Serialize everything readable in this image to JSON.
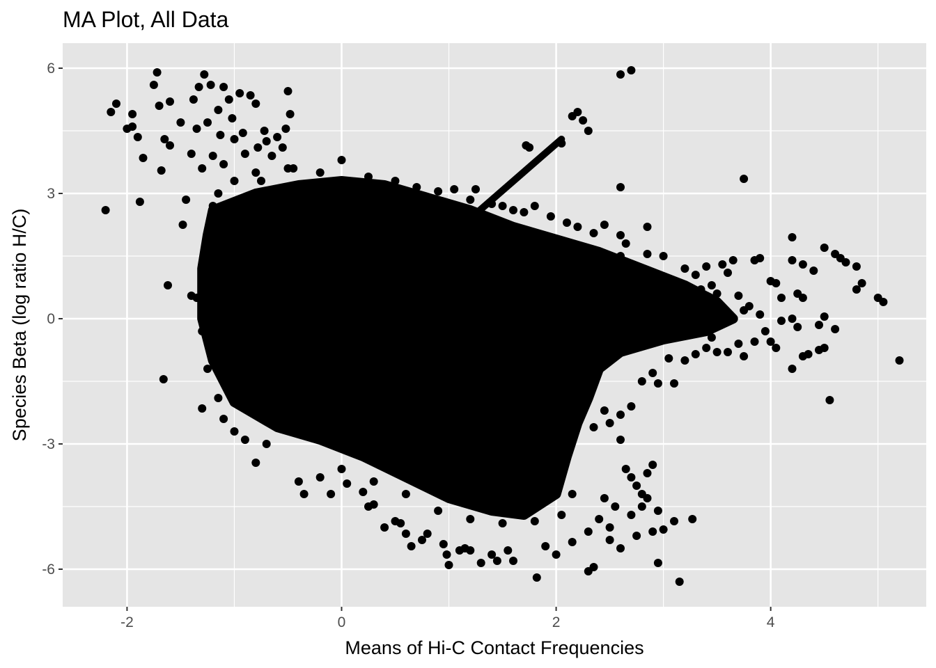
{
  "chart_data": {
    "type": "scatter",
    "title": "MA Plot, All Data",
    "xlabel": "Means of Hi-C Contact Frequencies",
    "ylabel": "Species Beta (log ratio H/C)",
    "xlim": [
      -2.6,
      5.45
    ],
    "ylim": [
      -6.9,
      6.6
    ],
    "x_ticks": [
      {
        "value": -2,
        "label": "-2"
      },
      {
        "value": 0,
        "label": "0"
      },
      {
        "value": 2,
        "label": "2"
      },
      {
        "value": 4,
        "label": "4"
      }
    ],
    "y_ticks": [
      {
        "value": -6,
        "label": "-6"
      },
      {
        "value": -3,
        "label": "-3"
      },
      {
        "value": 0,
        "label": "0"
      },
      {
        "value": 3,
        "label": "3"
      },
      {
        "value": 6,
        "label": "6"
      }
    ],
    "x_minor": [
      -1,
      1,
      3,
      5
    ],
    "y_minor": [
      -4.5,
      -1.5,
      1.5,
      4.5
    ],
    "grid": true,
    "colors": {
      "panel": "#e5e5e5",
      "grid": "#ffffff",
      "point": "#000000",
      "tick_text": "#4d4d4d"
    },
    "dense_region_outline": [
      [
        -1.2,
        2.6
      ],
      [
        -0.8,
        3.0
      ],
      [
        -0.4,
        3.2
      ],
      [
        0.0,
        3.3
      ],
      [
        0.4,
        3.2
      ],
      [
        0.8,
        2.9
      ],
      [
        1.2,
        2.6
      ],
      [
        1.6,
        2.2
      ],
      [
        2.0,
        1.9
      ],
      [
        2.4,
        1.6
      ],
      [
        2.8,
        1.2
      ],
      [
        3.2,
        0.8
      ],
      [
        3.5,
        0.4
      ],
      [
        3.65,
        0.0
      ],
      [
        3.4,
        -0.3
      ],
      [
        3.0,
        -0.5
      ],
      [
        2.6,
        -0.8
      ],
      [
        2.4,
        -1.2
      ],
      [
        2.3,
        -1.9
      ],
      [
        2.2,
        -2.5
      ],
      [
        2.1,
        -3.3
      ],
      [
        2.0,
        -4.2
      ],
      [
        1.7,
        -4.7
      ],
      [
        1.4,
        -4.6
      ],
      [
        1.0,
        -4.3
      ],
      [
        0.6,
        -3.8
      ],
      [
        0.2,
        -3.3
      ],
      [
        -0.2,
        -2.9
      ],
      [
        -0.6,
        -2.6
      ],
      [
        -1.0,
        -2.0
      ],
      [
        -1.2,
        -1.0
      ],
      [
        -1.3,
        0.0
      ],
      [
        -1.3,
        1.2
      ],
      [
        -1.25,
        2.0
      ]
    ],
    "diagonal_streak": {
      "from": [
        1.2,
        2.4
      ],
      "to": [
        2.05,
        4.3
      ]
    },
    "points": [
      [
        -2.2,
        2.6
      ],
      [
        -2.15,
        4.95
      ],
      [
        -2.1,
        5.15
      ],
      [
        -2.0,
        4.55
      ],
      [
        -1.95,
        4.9
      ],
      [
        -1.95,
        4.6
      ],
      [
        -1.9,
        4.35
      ],
      [
        -1.88,
        2.8
      ],
      [
        -1.85,
        3.85
      ],
      [
        -1.75,
        5.6
      ],
      [
        -1.72,
        5.9
      ],
      [
        -1.7,
        5.1
      ],
      [
        -1.68,
        3.55
      ],
      [
        -1.65,
        4.3
      ],
      [
        -1.66,
        -1.45
      ],
      [
        -1.6,
        5.2
      ],
      [
        -1.6,
        4.15
      ],
      [
        -1.62,
        0.8
      ],
      [
        -1.5,
        4.7
      ],
      [
        -1.48,
        2.25
      ],
      [
        -1.45,
        2.85
      ],
      [
        -1.4,
        3.95
      ],
      [
        -1.4,
        0.55
      ],
      [
        -1.38,
        5.25
      ],
      [
        -1.35,
        4.55
      ],
      [
        -1.33,
        5.55
      ],
      [
        -1.3,
        3.6
      ],
      [
        -1.3,
        -2.15
      ],
      [
        -1.28,
        5.85
      ],
      [
        -1.25,
        4.7
      ],
      [
        -1.22,
        5.6
      ],
      [
        -1.2,
        3.9
      ],
      [
        -1.2,
        2.7
      ],
      [
        -1.15,
        5.0
      ],
      [
        -1.13,
        4.4
      ],
      [
        -1.1,
        5.55
      ],
      [
        -1.1,
        3.7
      ],
      [
        -1.05,
        5.25
      ],
      [
        -1.02,
        4.8
      ],
      [
        -1.0,
        4.3
      ],
      [
        -0.95,
        5.4
      ],
      [
        -0.92,
        4.45
      ],
      [
        -0.9,
        3.95
      ],
      [
        -0.85,
        5.35
      ],
      [
        -0.8,
        5.15
      ],
      [
        -0.78,
        4.1
      ],
      [
        -0.75,
        3.3
      ],
      [
        -0.72,
        4.5
      ],
      [
        -0.7,
        4.25
      ],
      [
        -0.8,
        -3.45
      ],
      [
        -0.65,
        3.9
      ],
      [
        -0.6,
        4.35
      ],
      [
        -0.55,
        4.1
      ],
      [
        -0.52,
        4.55
      ],
      [
        -0.5,
        5.45
      ],
      [
        -0.48,
        4.9
      ],
      [
        -0.45,
        3.6
      ],
      [
        -0.4,
        -3.9
      ],
      [
        -0.35,
        -4.2
      ],
      [
        -0.2,
        -3.8
      ],
      [
        -0.1,
        -4.2
      ],
      [
        0.0,
        3.8
      ],
      [
        0.05,
        -3.95
      ],
      [
        0.2,
        -4.15
      ],
      [
        0.25,
        -4.5
      ],
      [
        0.3,
        -4.45
      ],
      [
        0.4,
        -5.0
      ],
      [
        0.5,
        -4.85
      ],
      [
        0.55,
        -4.9
      ],
      [
        0.6,
        -5.15
      ],
      [
        0.65,
        -5.45
      ],
      [
        0.75,
        -5.3
      ],
      [
        0.8,
        -5.15
      ],
      [
        0.95,
        -5.4
      ],
      [
        0.98,
        -5.65
      ],
      [
        1.0,
        -5.9
      ],
      [
        1.1,
        -5.55
      ],
      [
        1.15,
        -5.5
      ],
      [
        1.2,
        -5.55
      ],
      [
        1.3,
        -5.85
      ],
      [
        1.4,
        -5.65
      ],
      [
        1.45,
        -5.8
      ],
      [
        1.55,
        -5.55
      ],
      [
        1.6,
        -5.8
      ],
      [
        1.82,
        -6.2
      ],
      [
        1.9,
        -5.45
      ],
      [
        2.0,
        -5.65
      ],
      [
        2.15,
        -5.35
      ],
      [
        2.3,
        -6.05
      ],
      [
        2.35,
        -5.95
      ],
      [
        2.5,
        -5.3
      ],
      [
        2.6,
        -5.5
      ],
      [
        2.75,
        -5.2
      ],
      [
        2.95,
        -5.85
      ],
      [
        2.9,
        -5.1
      ],
      [
        3.0,
        -5.05
      ],
      [
        3.1,
        -4.85
      ],
      [
        3.15,
        -6.3
      ],
      [
        3.27,
        -4.8
      ],
      [
        2.95,
        -1.55
      ],
      [
        3.1,
        -1.55
      ],
      [
        3.05,
        -0.95
      ],
      [
        3.3,
        -0.85
      ],
      [
        3.6,
        -0.8
      ],
      [
        3.7,
        -0.6
      ],
      [
        3.75,
        -0.9
      ],
      [
        3.85,
        -0.55
      ],
      [
        3.95,
        -0.3
      ],
      [
        4.05,
        -0.7
      ],
      [
        4.0,
        -0.55
      ],
      [
        4.1,
        -0.05
      ],
      [
        4.2,
        -1.2
      ],
      [
        4.2,
        0.0
      ],
      [
        4.25,
        -0.2
      ],
      [
        4.3,
        -0.9
      ],
      [
        4.35,
        -0.85
      ],
      [
        4.5,
        -0.7
      ],
      [
        4.45,
        -0.75
      ],
      [
        4.6,
        -0.25
      ],
      [
        4.55,
        -1.95
      ],
      [
        4.45,
        -0.15
      ],
      [
        4.5,
        0.05
      ],
      [
        4.3,
        0.5
      ],
      [
        4.25,
        0.6
      ],
      [
        4.2,
        1.4
      ],
      [
        4.2,
        1.95
      ],
      [
        4.3,
        1.3
      ],
      [
        4.4,
        1.15
      ],
      [
        4.5,
        1.7
      ],
      [
        4.6,
        1.55
      ],
      [
        4.65,
        1.45
      ],
      [
        4.7,
        1.35
      ],
      [
        4.8,
        1.25
      ],
      [
        4.8,
        0.7
      ],
      [
        4.85,
        0.85
      ],
      [
        5.0,
        0.5
      ],
      [
        5.05,
        0.4
      ],
      [
        5.2,
        -1.0
      ],
      [
        3.75,
        3.35
      ],
      [
        3.85,
        1.4
      ],
      [
        3.9,
        1.45
      ],
      [
        4.0,
        0.9
      ],
      [
        4.05,
        0.85
      ],
      [
        4.1,
        0.5
      ],
      [
        3.6,
        1.1
      ],
      [
        3.55,
        1.3
      ],
      [
        3.65,
        1.4
      ],
      [
        3.4,
        1.25
      ],
      [
        3.3,
        1.05
      ],
      [
        3.2,
        1.2
      ],
      [
        3.0,
        1.5
      ],
      [
        2.85,
        1.55
      ],
      [
        2.65,
        1.8
      ],
      [
        2.6,
        2.0
      ],
      [
        2.85,
        2.2
      ],
      [
        2.45,
        2.25
      ],
      [
        2.6,
        3.15
      ],
      [
        2.2,
        4.95
      ],
      [
        2.15,
        4.85
      ],
      [
        2.25,
        4.75
      ],
      [
        2.3,
        4.5
      ],
      [
        2.05,
        4.2
      ],
      [
        1.75,
        4.1
      ],
      [
        1.72,
        4.15
      ],
      [
        1.8,
        2.7
      ],
      [
        1.6,
        2.6
      ],
      [
        1.5,
        2.7
      ],
      [
        1.25,
        3.1
      ],
      [
        1.05,
        3.1
      ],
      [
        0.9,
        3.05
      ],
      [
        2.6,
        5.85
      ],
      [
        2.7,
        5.95
      ],
      [
        2.6,
        1.5
      ],
      [
        3.0,
        0.9
      ],
      [
        3.35,
        0.7
      ],
      [
        3.5,
        0.6
      ],
      [
        3.8,
        0.3
      ],
      [
        3.9,
        0.1
      ],
      [
        -1.2,
        1.6
      ],
      [
        -1.3,
        1.0
      ],
      [
        -1.35,
        0.5
      ],
      [
        -1.3,
        -0.3
      ],
      [
        -1.25,
        -1.2
      ],
      [
        -1.15,
        -1.9
      ],
      [
        -1.1,
        -2.4
      ],
      [
        -1.0,
        -2.7
      ],
      [
        -0.9,
        -2.9
      ],
      [
        -0.7,
        -3.0
      ],
      [
        2.35,
        -2.6
      ],
      [
        2.45,
        -2.2
      ],
      [
        2.5,
        -2.5
      ],
      [
        2.6,
        -2.9
      ],
      [
        2.65,
        -3.6
      ],
      [
        2.7,
        -3.8
      ],
      [
        2.75,
        -4.0
      ],
      [
        2.8,
        -4.2
      ],
      [
        2.85,
        -3.7
      ],
      [
        2.9,
        -3.5
      ],
      [
        2.85,
        -4.3
      ],
      [
        2.8,
        -4.5
      ],
      [
        2.95,
        -4.6
      ],
      [
        2.7,
        -4.7
      ],
      [
        2.55,
        -4.5
      ],
      [
        2.45,
        -4.3
      ],
      [
        2.4,
        -4.8
      ],
      [
        2.5,
        -5.0
      ],
      [
        2.3,
        -5.1
      ],
      [
        2.6,
        -2.3
      ],
      [
        2.7,
        -2.1
      ],
      [
        2.8,
        -1.5
      ],
      [
        2.9,
        -1.3
      ],
      [
        3.2,
        -1.0
      ],
      [
        3.4,
        -0.7
      ],
      [
        3.45,
        -0.45
      ],
      [
        3.5,
        -0.8
      ],
      [
        3.3,
        0.4
      ],
      [
        3.45,
        0.8
      ],
      [
        3.7,
        0.55
      ],
      [
        3.75,
        0.2
      ],
      [
        2.2,
        2.2
      ],
      [
        2.35,
        2.05
      ],
      [
        2.1,
        2.3
      ],
      [
        1.95,
        2.45
      ],
      [
        1.7,
        2.55
      ],
      [
        1.4,
        2.75
      ],
      [
        1.2,
        2.85
      ],
      [
        0.7,
        3.15
      ],
      [
        0.5,
        3.3
      ],
      [
        0.25,
        3.4
      ],
      [
        -0.2,
        3.5
      ],
      [
        -0.5,
        3.6
      ],
      [
        -0.8,
        3.5
      ],
      [
        -1.0,
        3.3
      ],
      [
        -1.15,
        3.0
      ],
      [
        -1.05,
        2.4
      ],
      [
        0.0,
        -3.6
      ],
      [
        0.3,
        -3.9
      ],
      [
        0.6,
        -4.2
      ],
      [
        0.9,
        -4.6
      ],
      [
        1.2,
        -4.8
      ],
      [
        1.5,
        -4.9
      ],
      [
        1.8,
        -4.85
      ],
      [
        2.05,
        -4.7
      ],
      [
        2.15,
        -4.2
      ]
    ]
  }
}
